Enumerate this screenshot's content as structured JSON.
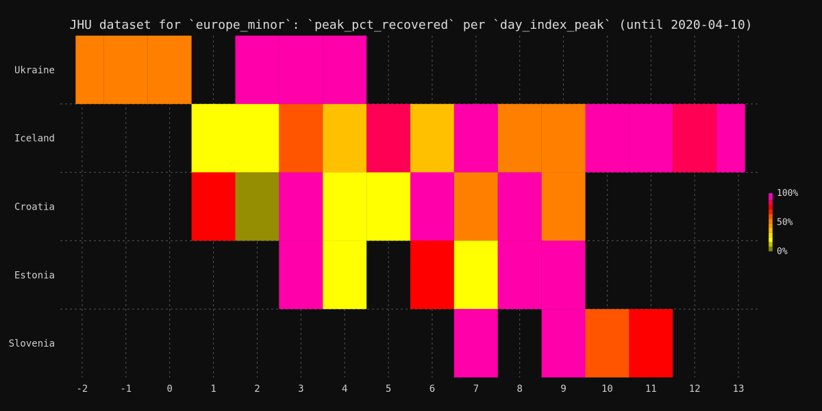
{
  "chart_data": {
    "type": "heatmap",
    "title": "JHU dataset for `europe_minor`: `peak_pct_recovered` per `day_index_peak` (until 2020-04-10)",
    "xlabel": "",
    "ylabel": "",
    "x_ticks": [
      -2,
      -1,
      0,
      1,
      2,
      3,
      4,
      5,
      6,
      7,
      8,
      9,
      10,
      11,
      12,
      13
    ],
    "y_categories": [
      "Ukraine",
      "Iceland",
      "Croatia",
      "Estonia",
      "Slovenia"
    ],
    "xlim": [
      -2.5,
      13.5
    ],
    "grid": true,
    "legend": {
      "position": "right",
      "tick_labels": [
        "100%",
        "50%",
        "0%"
      ],
      "tick_values": [
        100,
        50,
        0
      ]
    },
    "cells": [
      {
        "y": "Ukraine",
        "x": -2,
        "x_start": -2.15,
        "x_end": -1.5,
        "color": "#ff7f00"
      },
      {
        "y": "Ukraine",
        "x": -1,
        "x_start": -1.5,
        "x_end": -0.5,
        "color": "#ff7f00"
      },
      {
        "y": "Ukraine",
        "x": 0,
        "x_start": -0.5,
        "x_end": 0.5,
        "color": "#ff7f00"
      },
      {
        "y": "Ukraine",
        "x": 2,
        "x_start": 1.5,
        "x_end": 2.5,
        "color": "#ff00aa"
      },
      {
        "y": "Ukraine",
        "x": 3,
        "x_start": 2.5,
        "x_end": 3.5,
        "color": "#ff00aa"
      },
      {
        "y": "Ukraine",
        "x": 4,
        "x_start": 3.5,
        "x_end": 4.5,
        "color": "#ff00aa"
      },
      {
        "y": "Iceland",
        "x": 1,
        "x_start": 0.5,
        "x_end": 1.5,
        "color": "#ffff00"
      },
      {
        "y": "Iceland",
        "x": 2,
        "x_start": 1.5,
        "x_end": 2.5,
        "color": "#ffff00"
      },
      {
        "y": "Iceland",
        "x": 3,
        "x_start": 2.5,
        "x_end": 3.5,
        "color": "#ff5500"
      },
      {
        "y": "Iceland",
        "x": 4,
        "x_start": 3.5,
        "x_end": 4.5,
        "color": "#ffc000"
      },
      {
        "y": "Iceland",
        "x": 5,
        "x_start": 4.5,
        "x_end": 5.5,
        "color": "#ff0055"
      },
      {
        "y": "Iceland",
        "x": 6,
        "x_start": 5.5,
        "x_end": 6.5,
        "color": "#ffc000"
      },
      {
        "y": "Iceland",
        "x": 7,
        "x_start": 6.5,
        "x_end": 7.5,
        "color": "#ff00aa"
      },
      {
        "y": "Iceland",
        "x": 8,
        "x_start": 7.5,
        "x_end": 8.5,
        "color": "#ff7f00"
      },
      {
        "y": "Iceland",
        "x": 9,
        "x_start": 8.5,
        "x_end": 9.5,
        "color": "#ff7f00"
      },
      {
        "y": "Iceland",
        "x": 10,
        "x_start": 9.5,
        "x_end": 10.5,
        "color": "#ff00aa"
      },
      {
        "y": "Iceland",
        "x": 11,
        "x_start": 10.5,
        "x_end": 11.5,
        "color": "#ff00aa"
      },
      {
        "y": "Iceland",
        "x": 12,
        "x_start": 11.5,
        "x_end": 12.5,
        "color": "#ff0055"
      },
      {
        "y": "Iceland",
        "x": 13,
        "x_start": 12.5,
        "x_end": 13.15,
        "color": "#ff00aa"
      },
      {
        "y": "Croatia",
        "x": 1,
        "x_start": 0.5,
        "x_end": 1.5,
        "color": "#ff0000"
      },
      {
        "y": "Croatia",
        "x": 2,
        "x_start": 1.5,
        "x_end": 2.5,
        "color": "#958d02"
      },
      {
        "y": "Croatia",
        "x": 3,
        "x_start": 2.5,
        "x_end": 3.5,
        "color": "#ff00aa"
      },
      {
        "y": "Croatia",
        "x": 4,
        "x_start": 3.5,
        "x_end": 4.5,
        "color": "#ffff00"
      },
      {
        "y": "Croatia",
        "x": 5,
        "x_start": 4.5,
        "x_end": 5.5,
        "color": "#ffff00"
      },
      {
        "y": "Croatia",
        "x": 6,
        "x_start": 5.5,
        "x_end": 6.5,
        "color": "#ff00aa"
      },
      {
        "y": "Croatia",
        "x": 7,
        "x_start": 6.5,
        "x_end": 7.5,
        "color": "#ff7f00"
      },
      {
        "y": "Croatia",
        "x": 8,
        "x_start": 7.5,
        "x_end": 8.5,
        "color": "#ff00aa"
      },
      {
        "y": "Croatia",
        "x": 9,
        "x_start": 8.5,
        "x_end": 9.5,
        "color": "#ff7f00"
      },
      {
        "y": "Estonia",
        "x": 3,
        "x_start": 2.5,
        "x_end": 3.5,
        "color": "#ff00aa"
      },
      {
        "y": "Estonia",
        "x": 4,
        "x_start": 3.5,
        "x_end": 4.5,
        "color": "#ffff00"
      },
      {
        "y": "Estonia",
        "x": 6,
        "x_start": 5.5,
        "x_end": 6.5,
        "color": "#ff0000"
      },
      {
        "y": "Estonia",
        "x": 7,
        "x_start": 6.5,
        "x_end": 7.5,
        "color": "#ffff00"
      },
      {
        "y": "Estonia",
        "x": 8,
        "x_start": 7.5,
        "x_end": 8.5,
        "color": "#ff00aa"
      },
      {
        "y": "Estonia",
        "x": 9,
        "x_start": 8.5,
        "x_end": 9.5,
        "color": "#ff00aa"
      },
      {
        "y": "Slovenia",
        "x": 7,
        "x_start": 6.5,
        "x_end": 7.5,
        "color": "#ff00aa"
      },
      {
        "y": "Slovenia",
        "x": 9,
        "x_start": 8.5,
        "x_end": 9.5,
        "color": "#ff00aa"
      },
      {
        "y": "Slovenia",
        "x": 10,
        "x_start": 9.5,
        "x_end": 10.5,
        "color": "#ff5500"
      },
      {
        "y": "Slovenia",
        "x": 11,
        "x_start": 10.5,
        "x_end": 11.5,
        "color": "#ff0000"
      }
    ],
    "colorscale": [
      {
        "value": 0,
        "color": "#555555"
      },
      {
        "value": 8,
        "color": "#8a8600"
      },
      {
        "value": 16,
        "color": "#c6c000"
      },
      {
        "value": 24,
        "color": "#ffff00"
      },
      {
        "value": 32,
        "color": "#ffe000"
      },
      {
        "value": 40,
        "color": "#ffc000"
      },
      {
        "value": 48,
        "color": "#ff9d00"
      },
      {
        "value": 56,
        "color": "#ff7f00"
      },
      {
        "value": 64,
        "color": "#ff5500"
      },
      {
        "value": 72,
        "color": "#ff2200"
      },
      {
        "value": 80,
        "color": "#ff0000"
      },
      {
        "value": 88,
        "color": "#ff0055"
      },
      {
        "value": 96,
        "color": "#ff00aa"
      },
      {
        "value": 100,
        "color": "#ff00dd"
      }
    ]
  }
}
